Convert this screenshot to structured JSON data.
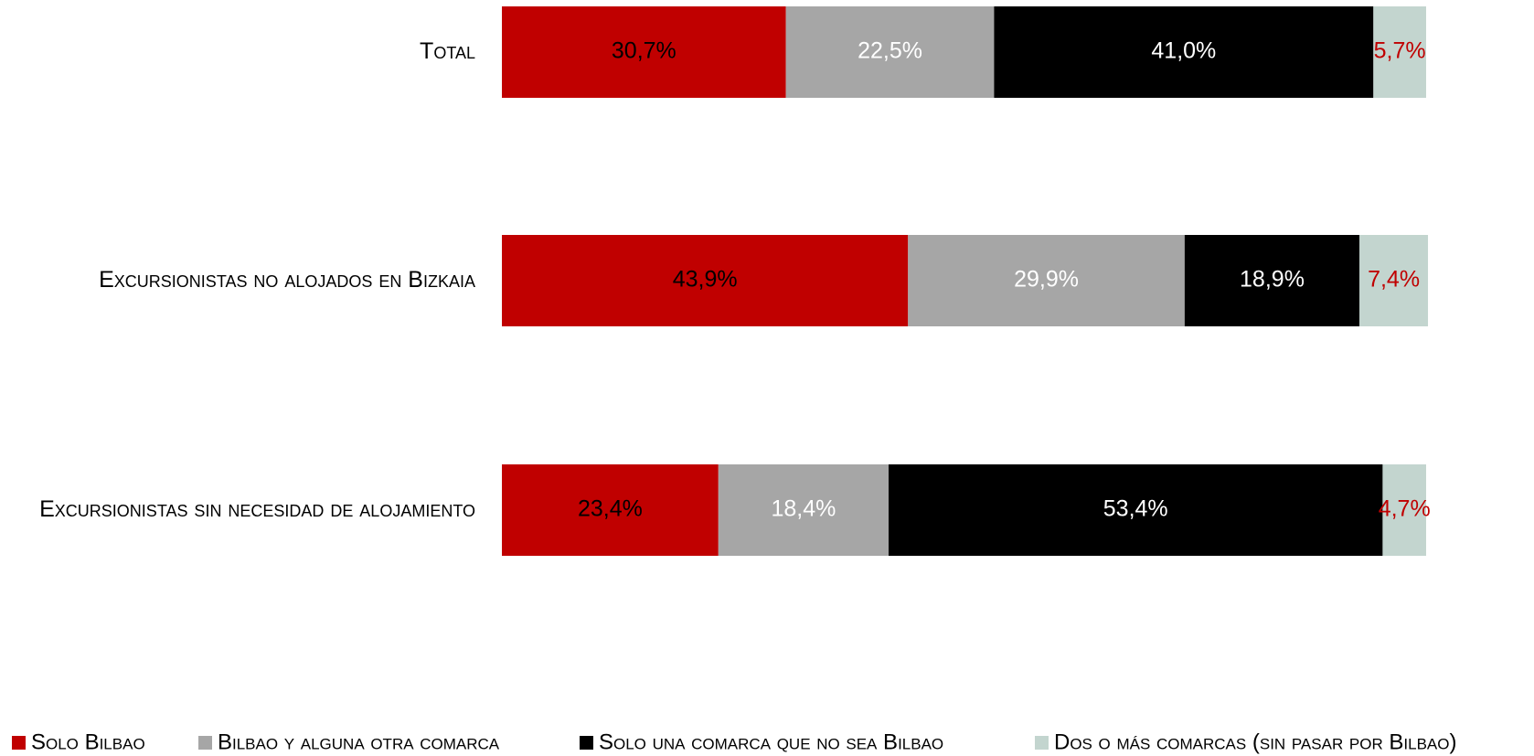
{
  "chart_data": {
    "type": "stacked-barh",
    "categories": [
      "Total",
      "Excursionistas no alojados en Bizkaia",
      "Excursionistas sin necesidad de alojamiento"
    ],
    "xlim": [
      0,
      100
    ],
    "series": [
      {
        "name": "Solo Bilbao",
        "color": "#c00000",
        "label_color": "#000000",
        "values": [
          30.7,
          43.9,
          23.4
        ],
        "value_labels": [
          "30,7%",
          "43,9%",
          "23,4%"
        ]
      },
      {
        "name": "Bilbao y alguna otra comarca",
        "color": "#a6a6a6",
        "label_color": "#ffffff",
        "values": [
          22.5,
          29.9,
          18.4
        ],
        "value_labels": [
          "22,5%",
          "29,9%",
          "18,4%"
        ]
      },
      {
        "name": "Solo una comarca que no sea Bilbao",
        "color": "#000000",
        "label_color": "#ffffff",
        "values": [
          41.0,
          18.9,
          53.4
        ],
        "value_labels": [
          "41,0%",
          "18,9%",
          "53,4%"
        ]
      },
      {
        "name": "Dos o más comarcas (sin pasar por Bilbao)",
        "color": "#c3d5cf",
        "label_color": "#c00000",
        "values": [
          5.7,
          7.4,
          4.7
        ],
        "value_labels": [
          "5,7%",
          "7,4%",
          "4,7%"
        ]
      }
    ]
  }
}
